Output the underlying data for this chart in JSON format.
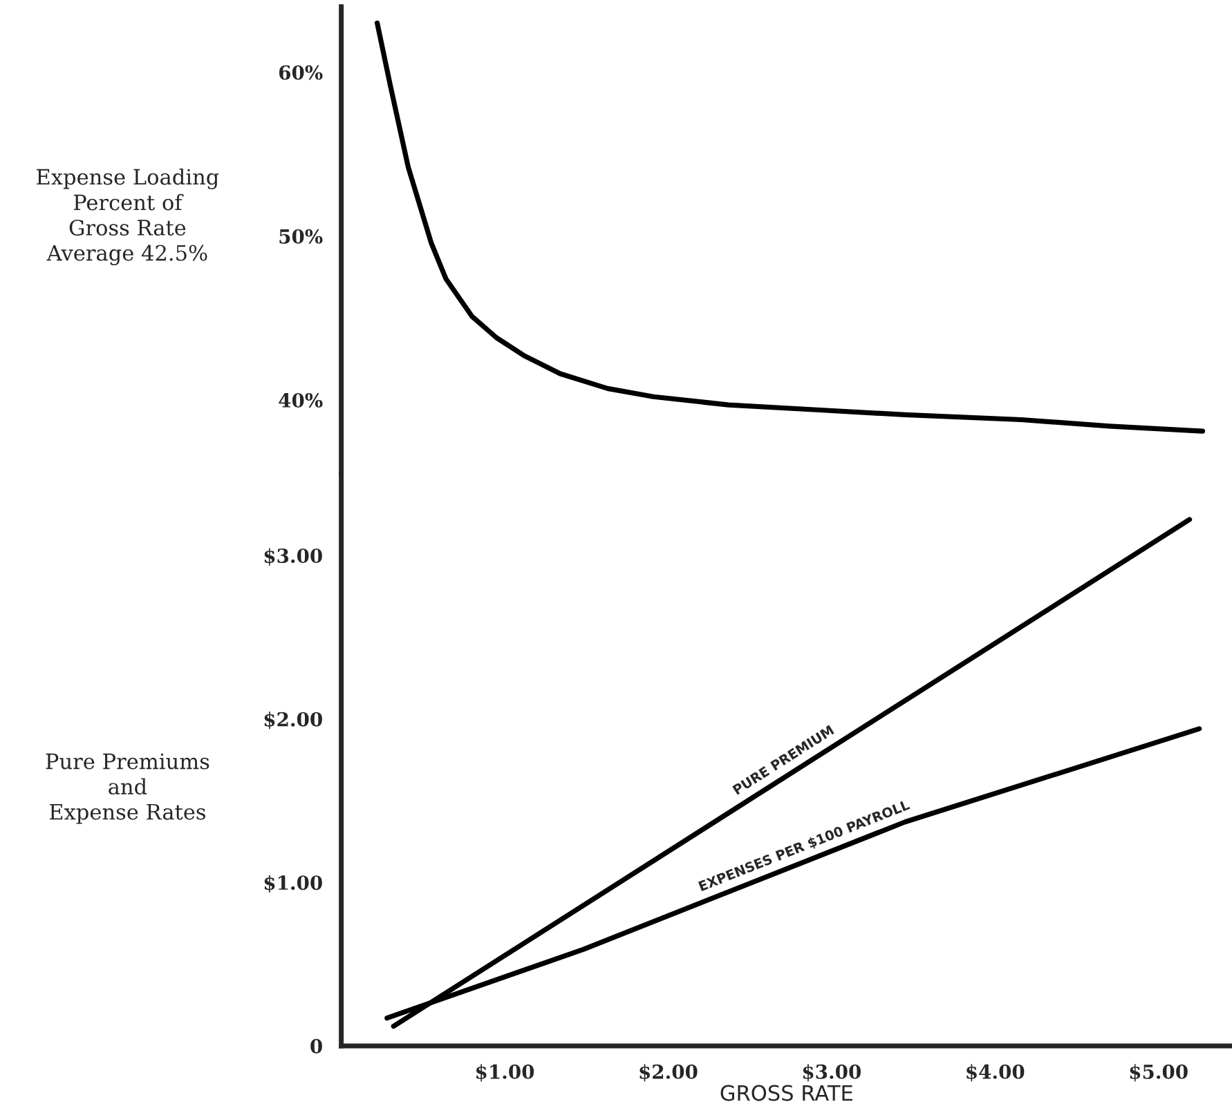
{
  "chart_data": [
    {
      "type": "line",
      "ylabel": "Expense Loading\nPercent of\nGross Rate\nAverage 42.5%",
      "xlim": [
        0,
        5.45
      ],
      "ylim": [
        35.5,
        64
      ],
      "yticks": [
        {
          "value": 40,
          "label": "40%"
        },
        {
          "value": 50,
          "label": "50%"
        },
        {
          "value": 60,
          "label": "60%"
        }
      ],
      "tick_labels": "y",
      "grid": false,
      "legend": false,
      "series": [
        {
          "color": "#000000",
          "x": [
            0.22,
            0.3,
            0.41,
            0.55,
            0.64,
            0.8,
            0.95,
            1.12,
            1.34,
            1.63,
            1.91,
            2.37,
            2.91,
            3.45,
            4.16,
            4.7,
            5.27
          ],
          "values": [
            63.0,
            59.2,
            54.2,
            49.6,
            47.4,
            45.1,
            43.8,
            42.7,
            41.6,
            40.7,
            40.2,
            39.7,
            39.4,
            39.1,
            38.8,
            38.4,
            38.1
          ]
        }
      ]
    },
    {
      "type": "line",
      "xlabel": "GROSS RATE",
      "ylabel": "Pure Premiums\nand\nExpense Rates",
      "xlim": [
        0,
        5.45
      ],
      "ylim": [
        0,
        3.5
      ],
      "xticks": [
        {
          "value": 1,
          "label": "$1.00"
        },
        {
          "value": 2,
          "label": "$2.00"
        },
        {
          "value": 3,
          "label": "$3.00"
        },
        {
          "value": 4,
          "label": "$4.00"
        },
        {
          "value": 5,
          "label": "$5.00"
        }
      ],
      "yticks": [
        0,
        {
          "value": 1,
          "label": "$1.00"
        },
        {
          "value": 2,
          "label": "$2.00"
        },
        {
          "value": 3,
          "label": "$3.00"
        }
      ],
      "grid": false,
      "legend": false,
      "series": [
        {
          "name": "PURE PREMIUM",
          "color": "#000000",
          "x": [
            0.32,
            5.19
          ],
          "values": [
            0.12,
            3.22
          ]
        },
        {
          "name": "EXPENSES PER $100 PAYROLL",
          "color": "#000000",
          "x": [
            0.28,
            1.48,
            3.45,
            5.25
          ],
          "values": [
            0.17,
            0.59,
            1.37,
            1.94
          ]
        }
      ]
    }
  ]
}
